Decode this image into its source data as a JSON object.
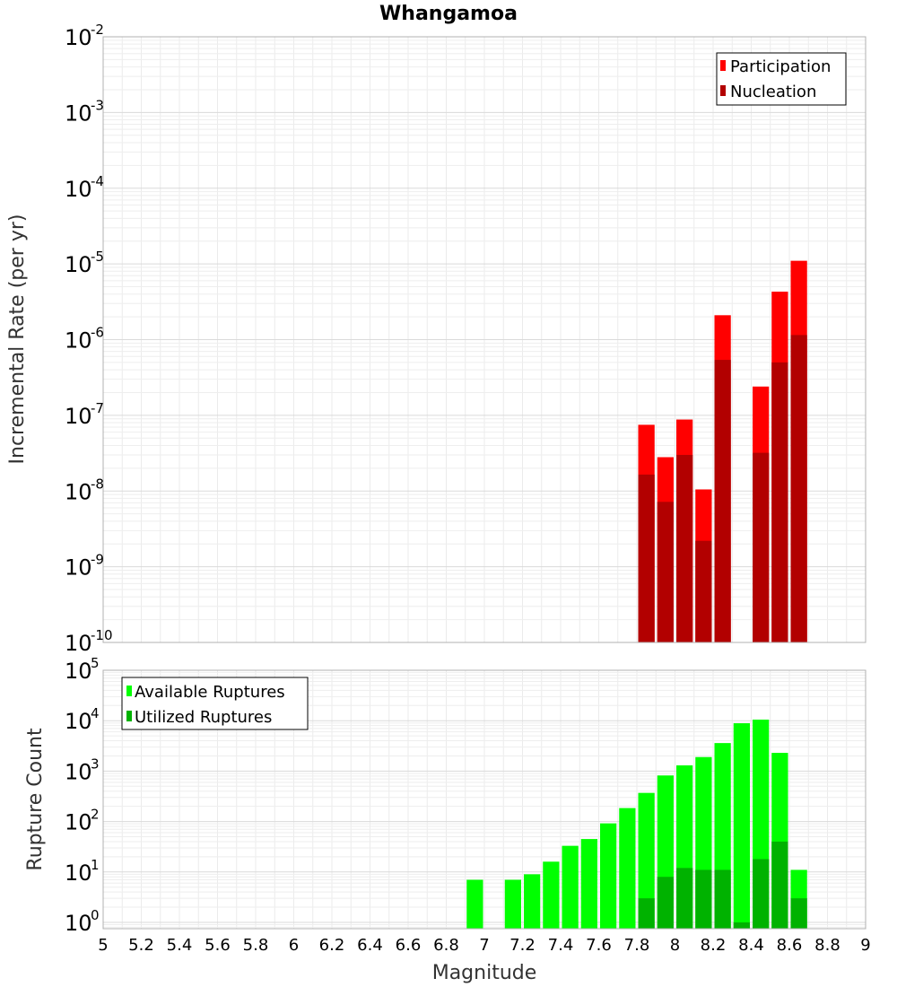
{
  "chart_data": [
    {
      "type": "bar",
      "title": "Whangamoa",
      "xlabel": "",
      "ylabel": "Incremental Rate (per yr)",
      "xlim": [
        5,
        9
      ],
      "ylim": [
        1e-10,
        0.01
      ],
      "yscale": "log",
      "grid": true,
      "legend_position": "top-right",
      "bar_width": 0.1,
      "series": [
        {
          "name": "Participation",
          "color": "#ff0000",
          "x": [
            7.85,
            7.95,
            8.05,
            8.15,
            8.25,
            8.45,
            8.55,
            8.65
          ],
          "values": [
            7.5e-08,
            2.8e-08,
            8.8e-08,
            1.05e-08,
            2.1e-06,
            2.4e-07,
            4.3e-06,
            1.1e-05
          ]
        },
        {
          "name": "Nucleation",
          "color": "#b20000",
          "x": [
            7.85,
            7.95,
            8.05,
            8.15,
            8.25,
            8.45,
            8.55,
            8.65
          ],
          "values": [
            1.65e-08,
            7.2e-09,
            3e-08,
            2.2e-09,
            5.4e-07,
            3.2e-08,
            5e-07,
            1.15e-06
          ]
        }
      ]
    },
    {
      "type": "bar",
      "title": "",
      "xlabel": "Magnitude",
      "ylabel": "Rupture Count",
      "xlim": [
        5,
        9
      ],
      "ylim": [
        0.75,
        100000.0
      ],
      "yscale": "log",
      "grid": true,
      "legend_position": "top-left",
      "bar_width": 0.1,
      "series": [
        {
          "name": "Available Ruptures",
          "color": "#00ff00",
          "x": [
            6.95,
            7.15,
            7.25,
            7.35,
            7.45,
            7.55,
            7.65,
            7.75,
            7.85,
            7.95,
            8.05,
            8.15,
            8.25,
            8.35,
            8.45,
            8.55,
            8.65
          ],
          "values": [
            7,
            7,
            9,
            16,
            33,
            45,
            92,
            185,
            370,
            820,
            1300,
            1900,
            3600,
            8900,
            10500,
            2300,
            11
          ]
        },
        {
          "name": "Utilized Ruptures",
          "color": "#00b200",
          "x": [
            7.85,
            7.95,
            8.05,
            8.15,
            8.25,
            8.35,
            8.45,
            8.55,
            8.65
          ],
          "values": [
            3,
            8,
            12,
            11,
            11,
            1,
            18,
            40,
            3
          ]
        }
      ]
    }
  ],
  "x_ticks": [
    "5",
    "5.2",
    "5.4",
    "5.6",
    "5.8",
    "6",
    "6.2",
    "6.4",
    "6.6",
    "6.8",
    "7",
    "7.2",
    "7.4",
    "7.6",
    "7.8",
    "8",
    "8.2",
    "8.4",
    "8.6",
    "8.8",
    "9"
  ],
  "top_y_ticks": [
    {
      "base": "10",
      "exp": "-2"
    },
    {
      "base": "10",
      "exp": "-3"
    },
    {
      "base": "10",
      "exp": "-4"
    },
    {
      "base": "10",
      "exp": "-5"
    },
    {
      "base": "10",
      "exp": "-6"
    },
    {
      "base": "10",
      "exp": "-7"
    },
    {
      "base": "10",
      "exp": "-8"
    },
    {
      "base": "10",
      "exp": "-9"
    },
    {
      "base": "10",
      "exp": "-10"
    }
  ],
  "bottom_y_ticks": [
    {
      "base": "10",
      "exp": "5"
    },
    {
      "base": "10",
      "exp": "4"
    },
    {
      "base": "10",
      "exp": "3"
    },
    {
      "base": "10",
      "exp": "2"
    },
    {
      "base": "10",
      "exp": "1"
    },
    {
      "base": "10",
      "exp": "0"
    }
  ]
}
